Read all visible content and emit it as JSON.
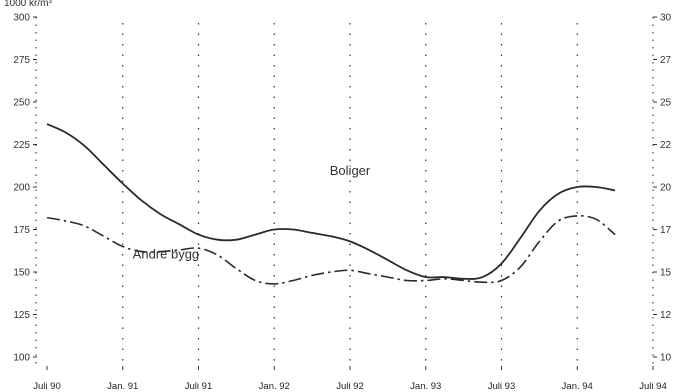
{
  "chart_data": {
    "type": "line",
    "ylabel": "1000 kr/m³",
    "ylim": [
      100,
      300
    ],
    "yticks": [
      100,
      125,
      150,
      175,
      200,
      225,
      250,
      275,
      300
    ],
    "categories": [
      "Juli 90",
      "Jan. 91",
      "Juli 91",
      "Jan. 92",
      "Juli 92",
      "Jan. 93",
      "Juli 93",
      "Jan. 94",
      "Juli 94"
    ],
    "grid": "vertical dotted",
    "series": [
      {
        "name": "Boliger",
        "style": "solid",
        "x": [
          0,
          0.25,
          0.5,
          0.75,
          1,
          1.25,
          1.5,
          1.75,
          2,
          2.25,
          2.5,
          2.75,
          3,
          3.25,
          3.5,
          3.75,
          4,
          4.25,
          4.5,
          4.75,
          5,
          5.25,
          5.5,
          5.75,
          6,
          6.25,
          6.5,
          6.75,
          7,
          7.25,
          7.5
        ],
        "y": [
          237,
          232,
          224,
          213,
          202,
          192,
          184,
          178,
          172,
          169,
          169,
          172,
          175,
          175,
          173,
          171,
          168,
          163,
          157,
          151,
          147,
          147,
          146,
          147,
          155,
          170,
          186,
          196,
          200,
          200,
          198
        ]
      },
      {
        "name": "Andre bygg",
        "style": "dash-dot",
        "x": [
          0,
          0.25,
          0.5,
          0.75,
          1,
          1.25,
          1.5,
          1.75,
          2,
          2.25,
          2.5,
          2.75,
          3,
          3.25,
          3.5,
          3.75,
          4,
          4.25,
          4.5,
          4.75,
          5,
          5.25,
          5.5,
          5.75,
          6,
          6.25,
          6.5,
          6.75,
          7,
          7.25,
          7.5
        ],
        "y": [
          182,
          180,
          177,
          171,
          165,
          162,
          162,
          163,
          164,
          160,
          152,
          145,
          143,
          145,
          148,
          150,
          151,
          149,
          147,
          145,
          145,
          146,
          145,
          144,
          145,
          153,
          168,
          180,
          183,
          181,
          172
        ]
      }
    ],
    "labels": [
      {
        "text": "Boliger",
        "x": 4.0,
        "y": 207
      },
      {
        "text": "Andre bygg",
        "x": 1.57,
        "y": 158
      }
    ],
    "annotation_right_ticks": [
      "30",
      "27",
      "25",
      "22",
      "20",
      "17",
      "15",
      "12",
      "10"
    ],
    "line_color": "#2a2a2a"
  }
}
